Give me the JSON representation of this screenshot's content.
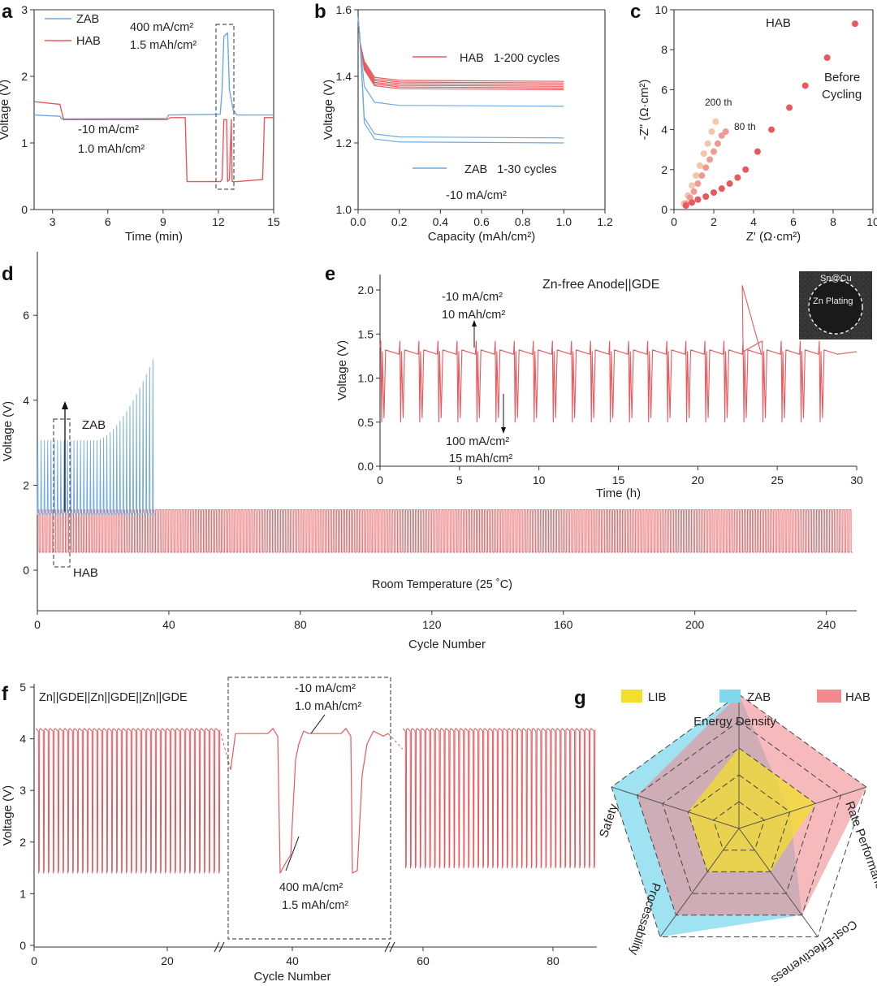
{
  "colors": {
    "red": "#e8585c",
    "blue": "#6fa9dd",
    "lib": "#f2df2c",
    "zab_radar": "#7fd8ee",
    "hab_radar": "#f08a8f",
    "light1": "#f6c6a8",
    "light2": "#ef9b92"
  },
  "panel_labels": [
    "a",
    "b",
    "c",
    "d",
    "e",
    "f",
    "g"
  ],
  "chart_data": [
    {
      "id": "a",
      "type": "line",
      "xlabel": "Time (min)",
      "ylabel": "Voltage (V)",
      "xlim": [
        2,
        15
      ],
      "ylim": [
        0,
        3
      ],
      "xticks": [
        "3",
        "6",
        "9",
        "12",
        "15"
      ],
      "yticks": [
        "0",
        "1",
        "2",
        "3"
      ],
      "legend": [
        "ZAB",
        "HAB"
      ],
      "annotations": [
        "400 mA/cm²",
        "1.5 mAh/cm²",
        "-10 mA/cm²",
        "1.0 mAh/cm²"
      ],
      "series": [
        {
          "name": "ZAB",
          "x": [
            2,
            3.4,
            3.5,
            9.2,
            9.3,
            12.1,
            12.2,
            12.3,
            12.5,
            12.6,
            12.8,
            13,
            15
          ],
          "y": [
            1.42,
            1.4,
            1.36,
            1.37,
            1.42,
            1.43,
            1.8,
            2.6,
            2.65,
            1.8,
            1.5,
            1.42,
            1.42
          ]
        },
        {
          "name": "HAB",
          "x": [
            2,
            3.4,
            3.6,
            9.2,
            9.4,
            10.2,
            10.3,
            12.1,
            12.2,
            12.3,
            12.45,
            12.5,
            12.6,
            12.7,
            12.75,
            13,
            14.4,
            14.5,
            15
          ],
          "y": [
            1.62,
            1.58,
            1.35,
            1.35,
            1.38,
            1.38,
            0.42,
            0.42,
            0.45,
            1.35,
            1.35,
            0.42,
            0.45,
            1.35,
            0.42,
            0.42,
            0.45,
            1.38,
            1.38
          ]
        }
      ]
    },
    {
      "id": "b",
      "type": "line",
      "xlabel": "Capacity (mAh/cm²)",
      "ylabel": "Voltage (V)",
      "xlim": [
        0,
        1.2
      ],
      "ylim": [
        1.0,
        1.6
      ],
      "xticks": [
        "0.0",
        "0.2",
        "0.4",
        "0.6",
        "0.8",
        "1.0",
        "1.2"
      ],
      "yticks": [
        "1.0",
        "1.2",
        "1.4",
        "1.6"
      ],
      "annotations": [
        "HAB   1-200 cycles",
        "ZAB   1-30 cycles",
        "-10 mA/cm²"
      ],
      "series": [
        {
          "name": "HAB",
          "plateaus": [
            1.385,
            1.38,
            1.375,
            1.37,
            1.365,
            1.36
          ]
        },
        {
          "name": "ZAB",
          "plateaus": [
            1.31,
            1.215,
            1.2
          ]
        }
      ]
    },
    {
      "id": "c",
      "type": "scatter",
      "xlabel": "Z' (Ω·cm²)",
      "ylabel": "-Z\" (Ω·cm²)",
      "xlim": [
        0,
        10
      ],
      "ylim": [
        0,
        10
      ],
      "xticks": [
        "0",
        "2",
        "4",
        "6",
        "8",
        "10"
      ],
      "yticks": [
        "0",
        "2",
        "4",
        "6",
        "8",
        "10"
      ],
      "annotations": [
        "HAB",
        "Before",
        "Cycling",
        "80 th",
        "200 th"
      ],
      "series": [
        {
          "name": "Before Cycling",
          "x": [
            0.6,
            0.9,
            1.2,
            1.6,
            2.0,
            2.4,
            2.8,
            3.2,
            3.6,
            4.2,
            4.9,
            5.8,
            6.6,
            7.7,
            9.1
          ],
          "y": [
            0.2,
            0.35,
            0.5,
            0.65,
            0.85,
            1.05,
            1.3,
            1.6,
            2.0,
            2.9,
            4.0,
            5.1,
            6.2,
            7.6,
            9.3
          ]
        },
        {
          "name": "80 th",
          "x": [
            0.6,
            0.8,
            1.0,
            1.2,
            1.4,
            1.6,
            1.8,
            2.0,
            2.2,
            2.4,
            2.6
          ],
          "y": [
            0.3,
            0.6,
            0.9,
            1.3,
            1.7,
            2.1,
            2.5,
            2.9,
            3.3,
            3.7,
            3.9
          ]
        },
        {
          "name": "200 th",
          "x": [
            0.5,
            0.7,
            0.9,
            1.1,
            1.3,
            1.5,
            1.7,
            1.9,
            2.1
          ],
          "y": [
            0.3,
            0.7,
            1.2,
            1.7,
            2.2,
            2.8,
            3.3,
            3.9,
            4.4
          ]
        }
      ]
    },
    {
      "id": "d",
      "type": "line",
      "xlabel": "Cycle Number",
      "ylabel": "Voltage (V)",
      "xlim": [
        0,
        248
      ],
      "ylim": [
        -1,
        7
      ],
      "xticks": [
        "0",
        "40",
        "80",
        "120",
        "160",
        "200",
        "240"
      ],
      "yticks": [
        "0",
        "2",
        "4",
        "6"
      ],
      "annotations": [
        "ZAB",
        "HAB",
        "Room Temperature (25 ˚C)"
      ],
      "series": [
        {
          "name": "ZAB",
          "cycles": 36,
          "charge_start": 3.05,
          "charge_end": 4.95,
          "discharge": 1.3
        },
        {
          "name": "HAB",
          "cycles": 248,
          "charge": 1.42,
          "discharge": 0.42
        }
      ]
    },
    {
      "id": "e",
      "type": "line",
      "title": "Zn-free Anode||GDE",
      "xlabel": "Time (h)",
      "ylabel": "Voltage (V)",
      "xlim": [
        0,
        30
      ],
      "ylim": [
        0,
        2.2
      ],
      "xticks": [
        "0",
        "5",
        "10",
        "15",
        "20",
        "25",
        "30"
      ],
      "yticks": [
        "0.0",
        "0.5",
        "1.0",
        "1.5",
        "2.0"
      ],
      "annotations": [
        "-10 mA/cm²",
        "10 mAh/cm²",
        "100 mA/cm²",
        "15 mAh/cm²"
      ],
      "inset_labels": [
        "Sn@Cu",
        "Zn Plating"
      ],
      "series": [
        {
          "name": "HAB",
          "period_h": 1.2,
          "plateau": 1.3,
          "spike_low": 0.5,
          "spike_high": 2.05,
          "spike_at_h": 22.8
        }
      ]
    },
    {
      "id": "f",
      "type": "line",
      "xlabel": "Cycle Number",
      "ylabel": "Voltage (V)",
      "ylim": [
        0,
        5
      ],
      "xticks": [
        "0",
        "20",
        "40",
        "60",
        "80"
      ],
      "yticks": [
        "0",
        "1",
        "2",
        "3",
        "4",
        "5"
      ],
      "annotations": [
        "Zn||GDE||Zn||GDE||Zn||GDE",
        "-10 mA/cm²",
        "1.0 mAh/cm²",
        "400 mA/cm²",
        "1.5 mAh/cm²"
      ],
      "series": [
        {
          "name": "HAB",
          "charge": 4.2,
          "discharge": 1.4
        }
      ]
    },
    {
      "id": "g",
      "type": "radar",
      "axes": [
        "Energy Density",
        "Rate Performance",
        "Cost-Effectiveness",
        "Processability",
        "Safety"
      ],
      "legend": [
        "LIB",
        "ZAB",
        "HAB"
      ],
      "series": [
        {
          "name": "LIB",
          "values": [
            3,
            3,
            2,
            2,
            2
          ]
        },
        {
          "name": "ZAB",
          "values": [
            5,
            2,
            4,
            5,
            5
          ]
        },
        {
          "name": "HAB",
          "values": [
            5,
            5,
            4,
            4,
            4
          ]
        }
      ]
    }
  ]
}
